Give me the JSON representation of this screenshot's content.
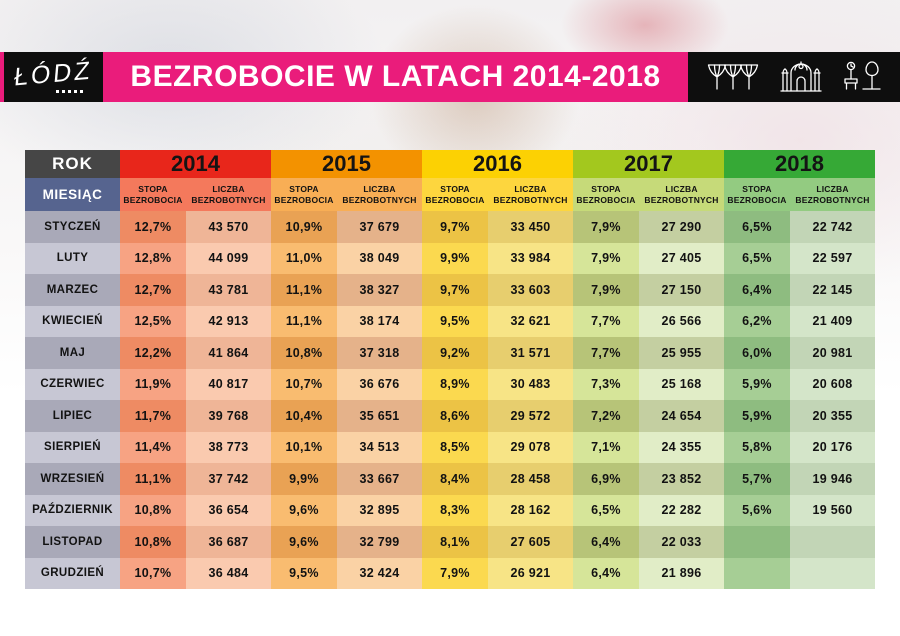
{
  "header": {
    "logo": "ŁÓDŹ",
    "title": "BEZROBOCIE W LATACH 2014-2018",
    "icons": [
      "station-icon",
      "gate-icon",
      "park-icon"
    ]
  },
  "theme": {
    "pink": "#EA1C7B",
    "black": "#0E0E0E",
    "rok_bg": "#464646",
    "miesiac_bg": "#56648F",
    "month_odd": "#A9A9B8",
    "month_even": "#C7C7D4"
  },
  "table": {
    "rok_label": "ROK",
    "miesiac_label": "MIESIĄC",
    "stopa_lines": [
      "STOPA",
      "BEZROBOCIA"
    ],
    "liczba_lines": [
      "LICZBA",
      "BEZROBOTNYCH"
    ],
    "years_style": [
      {
        "label": "2014",
        "header": "#E8261B",
        "subheader": "#F4795C",
        "stopa_odd": "#EE8B63",
        "stopa_even": "#F7A383",
        "liczba_odd": "#EFB597",
        "liczba_even": "#FACAAF"
      },
      {
        "label": "2015",
        "header": "#F39200",
        "subheader": "#F8AE55",
        "stopa_odd": "#E9A254",
        "stopa_even": "#F9BC70",
        "liczba_odd": "#E5B28A",
        "liczba_even": "#FAD2A5"
      },
      {
        "label": "2016",
        "header": "#FCD103",
        "subheader": "#FDD63E",
        "stopa_odd": "#ECC345",
        "stopa_even": "#FBD94F",
        "liczba_odd": "#E7CE6E",
        "liczba_even": "#F7E486"
      },
      {
        "label": "2017",
        "header": "#A3C81E",
        "subheader": "#C6DA79",
        "stopa_odd": "#B7C478",
        "stopa_even": "#D6E599",
        "liczba_odd": "#C4CFA1",
        "liczba_even": "#E1EDC7"
      },
      {
        "label": "2018",
        "header": "#36A936",
        "subheader": "#93CB81",
        "stopa_odd": "#8EBC80",
        "stopa_even": "#A6CE95",
        "liczba_odd": "#C2D5B6",
        "liczba_even": "#D4E5C9"
      }
    ]
  },
  "chart_data": {
    "type": "table",
    "title": "BEZROBOCIE W LATACH 2014-2018",
    "categories": [
      "STYCZEŃ",
      "LUTY",
      "MARZEC",
      "KWIECIEŃ",
      "MAJ",
      "CZERWIEC",
      "LIPIEC",
      "SIERPIEŃ",
      "WRZESIEŃ",
      "PAŹDZIERNIK",
      "LISTOPAD",
      "GRUDZIEŃ"
    ],
    "series": [
      {
        "name": "2014",
        "rate": [
          12.7,
          12.8,
          12.7,
          12.5,
          12.2,
          11.9,
          11.7,
          11.4,
          11.1,
          10.8,
          10.8,
          10.7
        ],
        "count": [
          43570,
          44099,
          43781,
          42913,
          41864,
          40817,
          39768,
          38773,
          37742,
          36654,
          36687,
          36484
        ]
      },
      {
        "name": "2015",
        "rate": [
          10.9,
          11.0,
          11.1,
          11.1,
          10.8,
          10.7,
          10.4,
          10.1,
          9.9,
          9.6,
          9.6,
          9.5
        ],
        "count": [
          37679,
          38049,
          38327,
          38174,
          37318,
          36676,
          35651,
          34513,
          33667,
          32895,
          32799,
          32424
        ]
      },
      {
        "name": "2016",
        "rate": [
          9.7,
          9.9,
          9.7,
          9.5,
          9.2,
          8.9,
          8.6,
          8.5,
          8.4,
          8.3,
          8.1,
          7.9
        ],
        "count": [
          33450,
          33984,
          33603,
          32621,
          31571,
          30483,
          29572,
          29078,
          28458,
          28162,
          27605,
          26921
        ]
      },
      {
        "name": "2017",
        "rate": [
          7.9,
          7.9,
          7.9,
          7.7,
          7.7,
          7.3,
          7.2,
          7.1,
          6.9,
          6.5,
          6.4,
          6.4
        ],
        "count": [
          27290,
          27405,
          27150,
          26566,
          25955,
          25168,
          24654,
          24355,
          23852,
          22282,
          22033,
          21896
        ]
      },
      {
        "name": "2018",
        "rate": [
          6.5,
          6.5,
          6.4,
          6.2,
          6.0,
          5.9,
          5.9,
          5.8,
          5.7,
          5.6,
          null,
          null
        ],
        "count": [
          22742,
          22597,
          22145,
          21409,
          20981,
          20608,
          20355,
          20176,
          19946,
          19560,
          null,
          null
        ]
      }
    ]
  }
}
